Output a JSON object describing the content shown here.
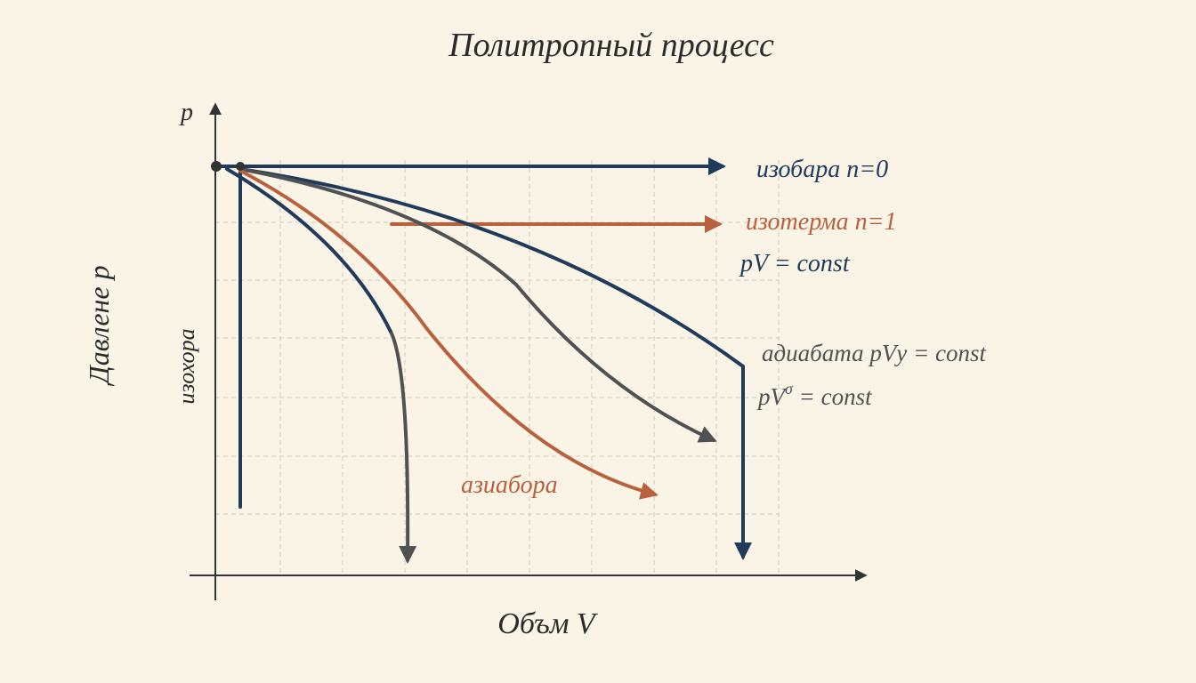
{
  "title": "Политропный процесс",
  "axes": {
    "y_symbol": "p",
    "y_label": "Давлене p",
    "x_label": "Объм V"
  },
  "labels": {
    "isochore": "изохора",
    "isobar": "изобара n=0",
    "isotherm": "изотерма n=1",
    "isotherm_formula": "pV = const",
    "adiabat": "адиабата pVу = const",
    "polytrope": {
      "base": "pV",
      "sup": "σ",
      "rest": " = const"
    },
    "other": "азиабора"
  }
}
